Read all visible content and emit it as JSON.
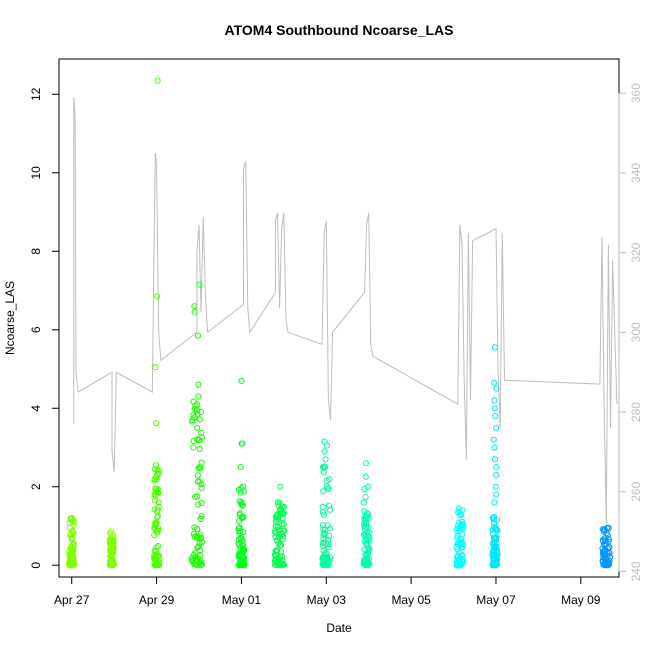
{
  "chart_data": {
    "type": "scatter",
    "title": "ATOM4 Southbound Ncoarse_LAS",
    "xlabel": "Date",
    "ylabel": "Ncoarse_LAS",
    "x_unit": "days since Apr 27",
    "xlim": [
      -0.3,
      12.9
    ],
    "ylim": [
      -0.3,
      12.9
    ],
    "y2lim": [
      238.6,
      368.6
    ],
    "x_ticks": [
      {
        "value": 0,
        "label": "Apr 27"
      },
      {
        "value": 2,
        "label": "Apr 29"
      },
      {
        "value": 4,
        "label": "May 01"
      },
      {
        "value": 6,
        "label": "May 03"
      },
      {
        "value": 8,
        "label": "May 05"
      },
      {
        "value": 10,
        "label": "May 07"
      },
      {
        "value": 12,
        "label": "May 09"
      }
    ],
    "y_ticks": [
      0,
      2,
      4,
      6,
      8,
      10,
      12
    ],
    "y2_ticks": [
      240,
      260,
      280,
      300,
      320,
      340,
      360
    ],
    "point_color_scale": "rainbow by time (green to blue)",
    "flights": [
      {
        "day": 0.0,
        "width": 0.12,
        "max": 1.2,
        "color": "#80ff00",
        "outliers": [
          1.2,
          0.8,
          0.7
        ]
      },
      {
        "day": 0.95,
        "width": 0.1,
        "max": 0.86,
        "color": "#80ff00",
        "outliers": [
          0.86,
          0.6
        ]
      },
      {
        "day": 2.0,
        "width": 0.12,
        "max": 2.55,
        "color": "#4dff00",
        "outliers": [
          12.35,
          6.85,
          5.05,
          3.62,
          2.55
        ]
      },
      {
        "day": 2.95,
        "width": 0.24,
        "max": 4.6,
        "color": "#1aff00",
        "outliers": [
          7.15,
          6.6,
          6.45,
          5.85,
          4.6,
          4.3,
          4.1,
          3.95,
          3.85
        ]
      },
      {
        "day": 4.0,
        "width": 0.14,
        "max": 2.0,
        "color": "#00ff1a",
        "outliers": [
          4.7,
          3.1,
          3.1,
          2.5,
          2.0
        ]
      },
      {
        "day": 4.9,
        "width": 0.22,
        "max": 1.6,
        "color": "#00ff4d",
        "outliers": [
          2.0,
          1.6
        ]
      },
      {
        "day": 6.0,
        "width": 0.18,
        "max": 2.7,
        "color": "#00ff99",
        "outliers": [
          3.15,
          3.05,
          2.9,
          2.7
        ]
      },
      {
        "day": 6.95,
        "width": 0.14,
        "max": 2.0,
        "color": "#00ffb3",
        "outliers": [
          2.6,
          2.25,
          2.0
        ]
      },
      {
        "day": 9.15,
        "width": 0.16,
        "max": 1.45,
        "color": "#00ffff",
        "outliers": [
          1.45,
          1.3
        ]
      },
      {
        "day": 9.98,
        "width": 0.12,
        "max": 1.25,
        "color": "#00e6ff",
        "outliers": [
          5.55,
          4.65,
          4.5,
          4.2,
          4.0,
          3.8,
          3.5,
          3.2,
          3.0,
          2.7,
          2.5,
          2.3,
          2.0,
          1.8,
          1.6
        ]
      },
      {
        "day": 12.6,
        "width": 0.18,
        "max": 0.95,
        "color": "#0099ff",
        "outliers": [
          0.95,
          0.9
        ]
      }
    ],
    "altitude_trace": [
      [
        0.05,
        277
      ],
      [
        0.05,
        359
      ],
      [
        0.08,
        354
      ],
      [
        0.1,
        290
      ],
      [
        0.15,
        285
      ],
      [
        0.95,
        290
      ],
      [
        0.95,
        270
      ],
      [
        1.0,
        265
      ],
      [
        1.05,
        290
      ],
      [
        1.9,
        285
      ],
      [
        1.95,
        330
      ],
      [
        1.97,
        345
      ],
      [
        2.0,
        342
      ],
      [
        2.05,
        300
      ],
      [
        2.1,
        293
      ],
      [
        2.95,
        300
      ],
      [
        2.95,
        320
      ],
      [
        3.0,
        327
      ],
      [
        3.05,
        305
      ],
      [
        3.1,
        329
      ],
      [
        3.15,
        310
      ],
      [
        3.2,
        300
      ],
      [
        4.05,
        307
      ],
      [
        4.05,
        341
      ],
      [
        4.1,
        343
      ],
      [
        4.15,
        306
      ],
      [
        4.2,
        300
      ],
      [
        4.8,
        310
      ],
      [
        4.8,
        328
      ],
      [
        4.85,
        330
      ],
      [
        4.9,
        306
      ],
      [
        4.95,
        326
      ],
      [
        5.0,
        330
      ],
      [
        5.05,
        303
      ],
      [
        5.1,
        300
      ],
      [
        5.9,
        297
      ],
      [
        5.95,
        325
      ],
      [
        6.0,
        328
      ],
      [
        6.05,
        283
      ],
      [
        6.1,
        278
      ],
      [
        6.15,
        300
      ],
      [
        6.9,
        310
      ],
      [
        6.95,
        327
      ],
      [
        7.0,
        330
      ],
      [
        7.05,
        297
      ],
      [
        7.1,
        294
      ],
      [
        9.1,
        282
      ],
      [
        9.15,
        327
      ],
      [
        9.2,
        322
      ],
      [
        9.25,
        288
      ],
      [
        9.3,
        268
      ],
      [
        9.35,
        325
      ],
      [
        9.4,
        283
      ],
      [
        9.45,
        323
      ],
      [
        10.0,
        326
      ],
      [
        10.05,
        290
      ],
      [
        10.1,
        276
      ],
      [
        10.15,
        325
      ],
      [
        10.2,
        288
      ],
      [
        12.45,
        287
      ],
      [
        12.5,
        324
      ],
      [
        12.55,
        280
      ],
      [
        12.6,
        252
      ],
      [
        12.65,
        322
      ],
      [
        12.7,
        276
      ],
      [
        12.75,
        318
      ],
      [
        12.85,
        282
      ]
    ]
  }
}
